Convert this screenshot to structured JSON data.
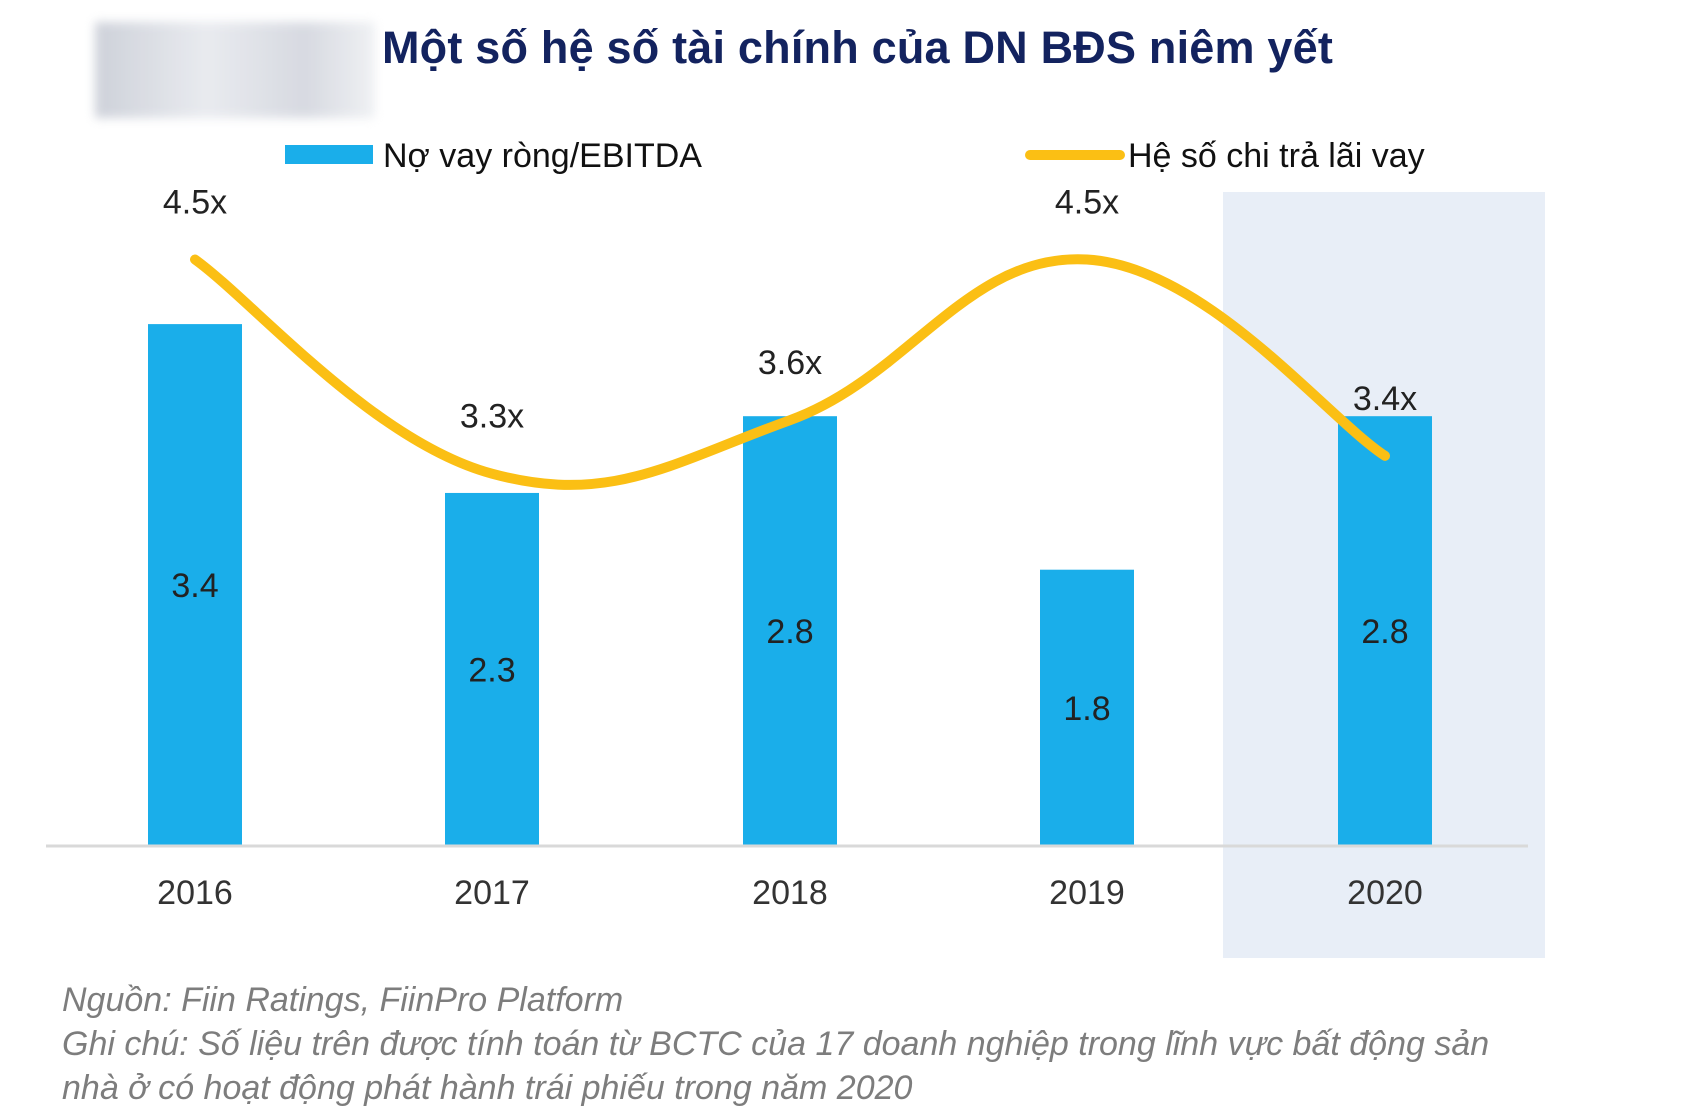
{
  "title": "Một số hệ số tài chính của DN BĐS niêm yết",
  "colors": {
    "bar": "#1aaeea",
    "line": "#fbbf14",
    "highlight": "#e8eef7",
    "axis": "#d9d9d9",
    "title": "#13235f"
  },
  "chart_data": {
    "type": "bar",
    "title": "Một số hệ số tài chính của DN BĐS niêm yết",
    "categories": [
      "2016",
      "2017",
      "2018",
      "2019",
      "2020"
    ],
    "highlight_category": "2020",
    "series": [
      {
        "name": "Nợ vay ròng/EBITDA",
        "type": "bar",
        "values": [
          3.4,
          2.3,
          2.8,
          1.8,
          2.8
        ],
        "labels": [
          "3.4",
          "2.3",
          "2.8",
          "1.8",
          "2.8"
        ]
      },
      {
        "name": "Hệ số chi trả lãi vay",
        "type": "line",
        "values": [
          4.5,
          3.3,
          3.6,
          4.5,
          3.4
        ],
        "labels": [
          "4.5x",
          "3.3x",
          "3.6x",
          "4.5x",
          "3.4x"
        ]
      }
    ],
    "legend": [
      "Nợ vay ròng/EBITDA",
      "Hệ số chi trả lãi vay"
    ],
    "legend_position": "top",
    "grid": false
  },
  "notes": {
    "source": "Nguồn: Fiin Ratings, FiinPro Platform",
    "note_line1": "Ghi chú: Số liệu trên được tính toán từ BCTC của 17 doanh nghiệp trong lĩnh vực bất động sản",
    "note_line2": "nhà ở có hoạt động phát hành trái phiếu trong năm 2020"
  }
}
